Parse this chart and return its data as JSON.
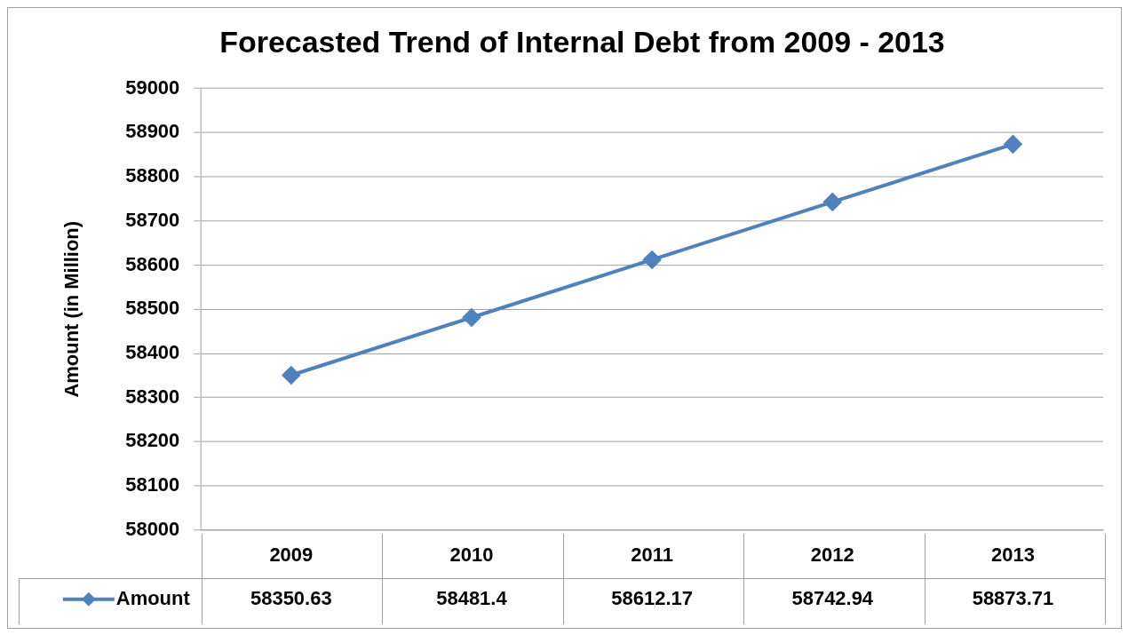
{
  "chart_data": {
    "type": "line",
    "title": "Forecasted Trend of Internal Debt from 2009 - 2013",
    "ylabel": "Amount (in Million)",
    "categories": [
      "2009",
      "2010",
      "2011",
      "2012",
      "2013"
    ],
    "series": [
      {
        "name": "Amount",
        "color": "#4f81bd",
        "values": [
          58350.63,
          58481.4,
          58612.17,
          58742.94,
          58873.71
        ]
      }
    ],
    "ylim": [
      58000,
      59000
    ],
    "yticks": [
      58000,
      58100,
      58200,
      58300,
      58400,
      58500,
      58600,
      58700,
      58800,
      58900,
      59000
    ],
    "grid": "y",
    "legend": "bottom",
    "marker": "diamond",
    "line_style": "solid",
    "data_labels": true
  }
}
